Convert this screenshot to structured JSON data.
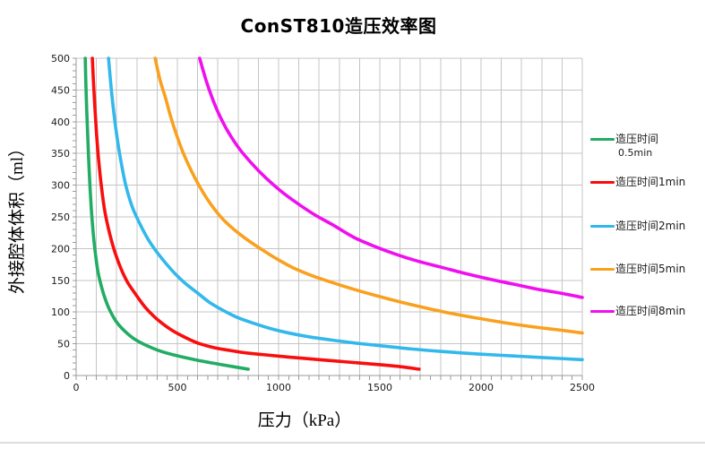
{
  "chart_data": {
    "type": "line",
    "title": "ConST810造压效率图",
    "xlabel": "压力（kPa）",
    "ylabel": "外接腔体体积（ml）",
    "xlim": [
      0,
      2500
    ],
    "ylim": [
      0,
      500
    ],
    "x_ticks": [
      0,
      500,
      1000,
      1500,
      2000,
      2500
    ],
    "y_ticks": [
      0,
      50,
      100,
      150,
      200,
      250,
      300,
      350,
      400,
      450,
      500
    ],
    "x_minor_step": 50,
    "y_minor_step": 10,
    "x_grid_step": 100,
    "y_grid_step": 50,
    "grid": true,
    "legend_position": "right",
    "series": [
      {
        "name": "造压时间0.5min",
        "color": "#22ac64",
        "points": [
          [
            45,
            500
          ],
          [
            48,
            460
          ],
          [
            52,
            420
          ],
          [
            57,
            380
          ],
          [
            62,
            340
          ],
          [
            68,
            300
          ],
          [
            75,
            262
          ],
          [
            81,
            237
          ],
          [
            88,
            212
          ],
          [
            96,
            190
          ],
          [
            107,
            165
          ],
          [
            121,
            145
          ],
          [
            139,
            125
          ],
          [
            163,
            105
          ],
          [
            198,
            85
          ],
          [
            240,
            70
          ],
          [
            290,
            57
          ],
          [
            350,
            47
          ],
          [
            420,
            38
          ],
          [
            500,
            31
          ],
          [
            600,
            24
          ],
          [
            720,
            17
          ],
          [
            850,
            10
          ]
        ]
      },
      {
        "name": "造压时间1min",
        "color": "#f90d0d",
        "points": [
          [
            80,
            500
          ],
          [
            86,
            460
          ],
          [
            93,
            420
          ],
          [
            101,
            380
          ],
          [
            111,
            340
          ],
          [
            124,
            300
          ],
          [
            140,
            262
          ],
          [
            157,
            235
          ],
          [
            175,
            212
          ],
          [
            196,
            190
          ],
          [
            222,
            168
          ],
          [
            252,
            148
          ],
          [
            285,
            132
          ],
          [
            305,
            123
          ],
          [
            340,
            108
          ],
          [
            385,
            93
          ],
          [
            430,
            81
          ],
          [
            475,
            71
          ],
          [
            520,
            63
          ],
          [
            565,
            56
          ],
          [
            611,
            50
          ],
          [
            680,
            44
          ],
          [
            750,
            40
          ],
          [
            830,
            36
          ],
          [
            920,
            33
          ],
          [
            1050,
            29
          ],
          [
            1200,
            25
          ],
          [
            1350,
            21
          ],
          [
            1500,
            17
          ],
          [
            1600,
            14
          ],
          [
            1694,
            10
          ]
        ]
      },
      {
        "name": "造压时间2min",
        "color": "#33b8ec",
        "points": [
          [
            160,
            500
          ],
          [
            171,
            460
          ],
          [
            184,
            420
          ],
          [
            200,
            380
          ],
          [
            220,
            340
          ],
          [
            245,
            300
          ],
          [
            278,
            265
          ],
          [
            318,
            237
          ],
          [
            355,
            215
          ],
          [
            395,
            196
          ],
          [
            440,
            178
          ],
          [
            490,
            160
          ],
          [
            540,
            145
          ],
          [
            600,
            130
          ],
          [
            660,
            115
          ],
          [
            730,
            102
          ],
          [
            800,
            91
          ],
          [
            880,
            82
          ],
          [
            960,
            74
          ],
          [
            1050,
            67
          ],
          [
            1150,
            61
          ],
          [
            1260,
            56
          ],
          [
            1380,
            51
          ],
          [
            1500,
            47
          ],
          [
            1650,
            42
          ],
          [
            1800,
            38
          ],
          [
            1980,
            34
          ],
          [
            2150,
            31
          ],
          [
            2320,
            28
          ],
          [
            2500,
            25
          ]
        ]
      },
      {
        "name": "造压时间5min",
        "color": "#f9a11f",
        "points": [
          [
            390,
            500
          ],
          [
            415,
            465
          ],
          [
            442,
            437
          ],
          [
            465,
            410
          ],
          [
            495,
            380
          ],
          [
            530,
            350
          ],
          [
            570,
            322
          ],
          [
            615,
            295
          ],
          [
            665,
            270
          ],
          [
            720,
            248
          ],
          [
            780,
            230
          ],
          [
            845,
            214
          ],
          [
            915,
            199
          ],
          [
            990,
            184
          ],
          [
            1070,
            170
          ],
          [
            1160,
            158
          ],
          [
            1261,
            147
          ],
          [
            1370,
            136
          ],
          [
            1480,
            126
          ],
          [
            1600,
            116
          ],
          [
            1720,
            107
          ],
          [
            1850,
            98
          ],
          [
            1990,
            90
          ],
          [
            2120,
            83
          ],
          [
            2250,
            77
          ],
          [
            2380,
            72
          ],
          [
            2500,
            67
          ]
        ]
      },
      {
        "name": "造压时间8min",
        "color": "#ef0fef",
        "points": [
          [
            610,
            500
          ],
          [
            645,
            462
          ],
          [
            690,
            423
          ],
          [
            740,
            390
          ],
          [
            800,
            360
          ],
          [
            865,
            335
          ],
          [
            935,
            312
          ],
          [
            1010,
            291
          ],
          [
            1090,
            272
          ],
          [
            1180,
            253
          ],
          [
            1270,
            237
          ],
          [
            1370,
            218
          ],
          [
            1470,
            204
          ],
          [
            1580,
            191
          ],
          [
            1690,
            180
          ],
          [
            1800,
            171
          ],
          [
            1920,
            161
          ],
          [
            2040,
            152
          ],
          [
            2160,
            144
          ],
          [
            2280,
            136
          ],
          [
            2390,
            130
          ],
          [
            2500,
            123
          ]
        ]
      }
    ]
  },
  "legend": {
    "items": [
      {
        "line1": "造压时间",
        "line2": "0.5min",
        "color": "#22ac64"
      },
      {
        "line1": "造压时间1min",
        "color": "#f90d0d"
      },
      {
        "line1": "造压时间2min",
        "color": "#33b8ec"
      },
      {
        "line1": "造压时间5min",
        "color": "#f9a11f"
      },
      {
        "line1": "造压时间8min",
        "color": "#ef0fef"
      }
    ]
  },
  "colors": {
    "grid": "#c4c4c4",
    "axis": "#9b9b9b",
    "text": "#1a1a1a",
    "background": "#ffffff",
    "divider": "#dcdcdc"
  }
}
